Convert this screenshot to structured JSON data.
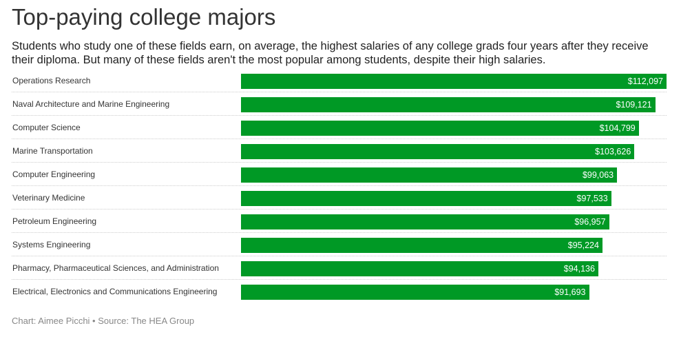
{
  "title": "Top-paying college majors",
  "subtitle": "Students who study one of these fields earn, on average, the highest salaries of any college grads four years after they receive their diploma. But many of these fields aren't the most popular among students, despite their high salaries.",
  "source": "Chart: Aimee Picchi • Source: The HEA Group",
  "chart_data": {
    "type": "bar",
    "orientation": "horizontal",
    "bar_color": "#009925",
    "categories": [
      "Operations Research",
      "Naval Architecture and Marine Engineering",
      "Computer Science",
      "Marine Transportation",
      "Computer Engineering",
      "Veterinary Medicine",
      "Petroleum Engineering",
      "Systems Engineering",
      "Pharmacy, Pharmaceutical Sciences, and Administration",
      "Electrical, Electronics and Communications Engineering"
    ],
    "values": [
      112097,
      109121,
      104799,
      103626,
      99063,
      97533,
      96957,
      95224,
      94136,
      91693
    ],
    "labels": [
      "$112,097",
      "$109,121",
      "$104,799",
      "$103,626",
      "$99,063",
      "$97,533",
      "$96,957",
      "$95,224",
      "$94,136",
      "$91,693"
    ],
    "xlim": [
      0,
      112097
    ]
  }
}
